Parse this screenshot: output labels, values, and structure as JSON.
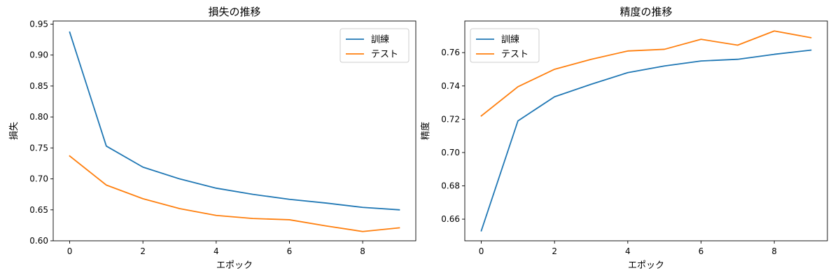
{
  "chart_data": [
    {
      "type": "line",
      "title": "損失の推移",
      "xlabel": "エポック",
      "ylabel": "損失",
      "xlim": [
        -0.45,
        9.45
      ],
      "ylim": [
        0.6,
        0.955
      ],
      "xticks": [
        0,
        2,
        4,
        6,
        8
      ],
      "xtick_labels": [
        "0",
        "2",
        "4",
        "6",
        "8"
      ],
      "yticks": [
        0.6,
        0.65,
        0.7,
        0.75,
        0.8,
        0.85,
        0.9,
        0.95
      ],
      "ytick_labels": [
        "0.60",
        "0.65",
        "0.70",
        "0.75",
        "0.80",
        "0.85",
        "0.90",
        "0.95"
      ],
      "grid": false,
      "legend_position": "top-right",
      "x": [
        0,
        1,
        2,
        3,
        4,
        5,
        6,
        7,
        8,
        9
      ],
      "series": [
        {
          "name": "訓練",
          "color": "#1f77b4",
          "values": [
            0.937,
            0.753,
            0.719,
            0.7,
            0.685,
            0.675,
            0.667,
            0.661,
            0.654,
            0.65
          ]
        },
        {
          "name": "テスト",
          "color": "#ff7f0e",
          "values": [
            0.737,
            0.69,
            0.668,
            0.652,
            0.641,
            0.636,
            0.634,
            0.624,
            0.615,
            0.621
          ]
        }
      ]
    },
    {
      "type": "line",
      "title": "精度の推移",
      "xlabel": "エポック",
      "ylabel": "精度",
      "xlim": [
        -0.45,
        9.45
      ],
      "ylim": [
        0.647,
        0.779
      ],
      "xticks": [
        0,
        2,
        4,
        6,
        8
      ],
      "xtick_labels": [
        "0",
        "2",
        "4",
        "6",
        "8"
      ],
      "yticks": [
        0.66,
        0.68,
        0.7,
        0.72,
        0.74,
        0.76
      ],
      "ytick_labels": [
        "0.66",
        "0.68",
        "0.70",
        "0.72",
        "0.74",
        "0.76"
      ],
      "grid": false,
      "legend_position": "top-left",
      "x": [
        0,
        1,
        2,
        3,
        4,
        5,
        6,
        7,
        8,
        9
      ],
      "series": [
        {
          "name": "訓練",
          "color": "#1f77b4",
          "values": [
            0.653,
            0.719,
            0.7335,
            0.741,
            0.748,
            0.752,
            0.755,
            0.756,
            0.759,
            0.7615
          ]
        },
        {
          "name": "テスト",
          "color": "#ff7f0e",
          "values": [
            0.722,
            0.7395,
            0.75,
            0.756,
            0.761,
            0.762,
            0.768,
            0.7645,
            0.773,
            0.769
          ]
        }
      ]
    }
  ]
}
